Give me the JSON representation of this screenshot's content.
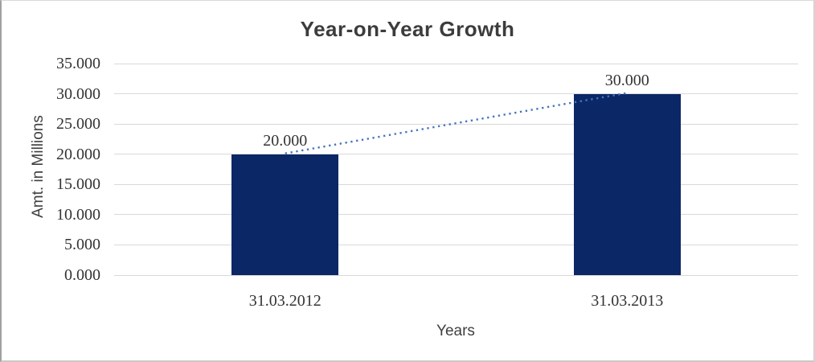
{
  "chart_data": {
    "type": "bar",
    "title": "Year-on-Year Growth",
    "xlabel": "Years",
    "ylabel": "Amt. in Millions",
    "categories": [
      "31.03.2012",
      "31.03.2013"
    ],
    "series": [
      {
        "name": "Amt. in Millions",
        "values": [
          20000,
          30000
        ]
      }
    ],
    "value_labels": [
      "20.000",
      "30.000"
    ],
    "ytick_values": [
      0,
      5000,
      10000,
      15000,
      20000,
      25000,
      30000,
      35000
    ],
    "ytick_labels": [
      "0.000",
      "5.000",
      "10.000",
      "15.000",
      "20.000",
      "25.000",
      "30.000",
      "35.000"
    ],
    "ylim": [
      0,
      35000
    ],
    "grid": true,
    "legend": false,
    "trendline": {
      "style": "dotted",
      "connects": [
        "top of 31.03.2012 bar",
        "top of 31.03.2013 bar"
      ]
    },
    "colors": {
      "bar": "#0b2766",
      "trend": "#4575bd",
      "gridline": "#d9d9d9",
      "tick_text": "#333333",
      "axis_title_text": "#404040",
      "title_text": "#3c3c3c"
    }
  }
}
